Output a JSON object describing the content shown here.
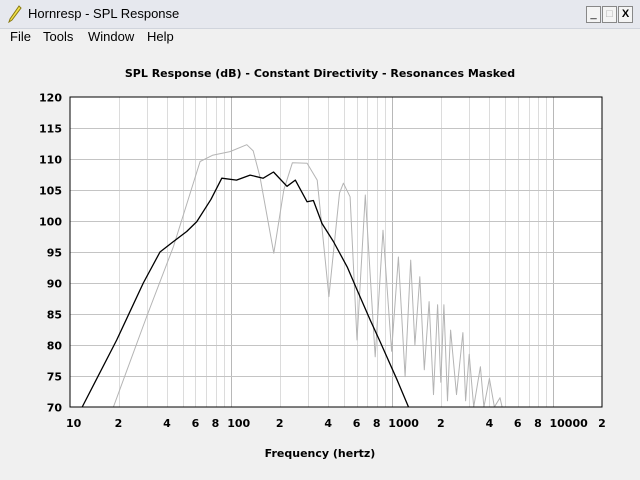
{
  "window": {
    "title": "Hornresp - SPL Response",
    "minimize_label": "_",
    "maximize_label": "□",
    "close_label": "X"
  },
  "menu": [
    {
      "label": "File"
    },
    {
      "label": "Tools"
    },
    {
      "label": "Window"
    },
    {
      "label": "Help"
    }
  ],
  "chart_data": {
    "type": "line",
    "title": "SPL Response (dB) - Constant Directivity - Resonances Masked",
    "xlabel": "Frequency (hertz)",
    "ylabel": "",
    "xscale": "log",
    "xlim": [
      10,
      20000
    ],
    "ylim": [
      70,
      120
    ],
    "grid": true,
    "x_tick_labels": [
      "10",
      "2",
      "4",
      "6",
      "8",
      "100",
      "2",
      "4",
      "6",
      "8",
      "1000",
      "2",
      "4",
      "6",
      "8",
      "10000",
      "2"
    ],
    "x_tick_values": [
      10,
      20,
      40,
      60,
      80,
      100,
      200,
      400,
      600,
      800,
      1000,
      2000,
      4000,
      6000,
      8000,
      10000,
      20000
    ],
    "y_ticks": [
      70,
      75,
      80,
      85,
      90,
      95,
      100,
      105,
      110,
      115,
      120
    ],
    "series": [
      {
        "color": "#000000",
        "points": [
          [
            11.9,
            70
          ],
          [
            19.5,
            80.8
          ],
          [
            28.5,
            90
          ],
          [
            36.2,
            95
          ],
          [
            43.9,
            96.7
          ],
          [
            53,
            98.3
          ],
          [
            61.2,
            99.9
          ],
          [
            75,
            103.5
          ],
          [
            87.5,
            106.9
          ],
          [
            108,
            106.6
          ],
          [
            131,
            107.4
          ],
          [
            158,
            106.9
          ],
          [
            183,
            107.9
          ],
          [
            222,
            105.6
          ],
          [
            250,
            106.6
          ],
          [
            296,
            103.1
          ],
          [
            324,
            103.3
          ],
          [
            366,
            99.6
          ],
          [
            431,
            96.7
          ],
          [
            525,
            92.6
          ],
          [
            604,
            88.9
          ],
          [
            730,
            84
          ],
          [
            841,
            80.5
          ],
          [
            1069,
            74.4
          ],
          [
            1260,
            70
          ]
        ]
      },
      {
        "color": "#b4b4b4",
        "points": [
          [
            18.6,
            70
          ],
          [
            29.9,
            84.6
          ],
          [
            43.9,
            95.9
          ],
          [
            64.2,
            109.6
          ],
          [
            76.6,
            110.6
          ],
          [
            98.4,
            111.2
          ],
          [
            125,
            112.3
          ],
          [
            137,
            111.3
          ],
          [
            151,
            107.1
          ],
          [
            184,
            94.8
          ],
          [
            212,
            105
          ],
          [
            240,
            109.4
          ],
          [
            296,
            109.3
          ],
          [
            342,
            106.6
          ],
          [
            404,
            87.8
          ],
          [
            470,
            104.5
          ],
          [
            497,
            106.1
          ],
          [
            547,
            103.9
          ],
          [
            604,
            80.8
          ],
          [
            680,
            104.2
          ],
          [
            783,
            78.1
          ],
          [
            875,
            98.5
          ],
          [
            990,
            79
          ],
          [
            1090,
            94.2
          ],
          [
            1200,
            74.9
          ],
          [
            1300,
            93.7
          ],
          [
            1380,
            80
          ],
          [
            1480,
            91
          ],
          [
            1580,
            76
          ],
          [
            1690,
            87
          ],
          [
            1800,
            72
          ],
          [
            1910,
            86.5
          ],
          [
            2000,
            74
          ],
          [
            2090,
            86.5
          ],
          [
            2200,
            71
          ],
          [
            2300,
            82.4
          ],
          [
            2500,
            72
          ],
          [
            2740,
            82
          ],
          [
            2850,
            71
          ],
          [
            3000,
            78.5
          ],
          [
            3200,
            70
          ],
          [
            3520,
            76.5
          ],
          [
            3700,
            70
          ],
          [
            4000,
            74.6
          ],
          [
            4300,
            70
          ],
          [
            4660,
            71.5
          ],
          [
            4800,
            70
          ]
        ]
      }
    ]
  }
}
